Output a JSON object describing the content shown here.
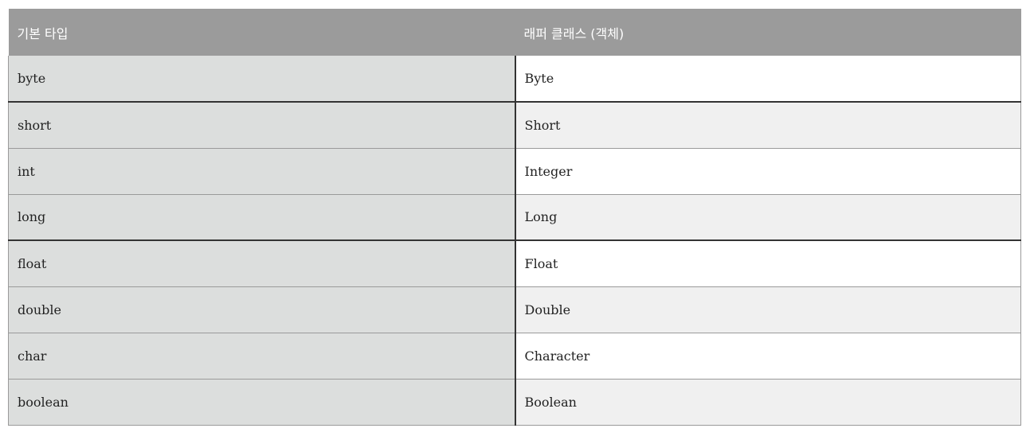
{
  "table": {
    "headers": [
      "기본 타입",
      "래퍼 클래스 (객체)"
    ],
    "rows": [
      [
        "byte",
        "Byte"
      ],
      [
        "short",
        "Short"
      ],
      [
        "int",
        "Integer"
      ],
      [
        "long",
        "Long"
      ],
      [
        "float",
        "Float"
      ],
      [
        "double",
        "Double"
      ],
      [
        "char",
        "Character"
      ],
      [
        "boolean",
        "Boolean"
      ]
    ]
  },
  "colors": {
    "header_bg": "#9b9b9b",
    "col_a_bg": "#dcdedd",
    "row_alt_bg": "#f0f0f0"
  }
}
